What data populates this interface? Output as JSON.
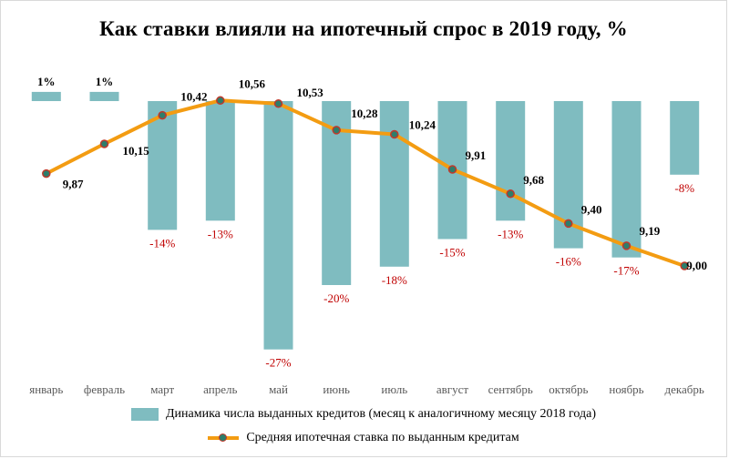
{
  "chart_data": {
    "type": "bar+line",
    "title": "Как ставки влияли на ипотечный спрос в 2019 году, %",
    "categories": [
      "январь",
      "февраль",
      "март",
      "апрель",
      "май",
      "июнь",
      "июль",
      "август",
      "сентябрь",
      "октябрь",
      "ноябрь",
      "декабрь"
    ],
    "series": [
      {
        "name": "Динамика числа выданных кредитов (месяц к аналогичному месяцу 2018 года)",
        "type": "bar",
        "values": [
          1,
          1,
          -14,
          -13,
          -27,
          -20,
          -18,
          -15,
          -13,
          -16,
          -17,
          -8
        ],
        "labels": [
          "1%",
          "1%",
          "-14%",
          "-13%",
          "-27%",
          "-20%",
          "-18%",
          "-15%",
          "-13%",
          "-16%",
          "-17%",
          "-8%"
        ],
        "color": "#7fbcc0",
        "label_color_negative": "#c00000"
      },
      {
        "name": "Средняя ипотечная ставка по выданным кредитам",
        "type": "line",
        "values": [
          9.87,
          10.15,
          10.42,
          10.56,
          10.53,
          10.28,
          10.24,
          9.91,
          9.68,
          9.4,
          9.19,
          9.0
        ],
        "labels": [
          "9,87",
          "10,15",
          "10,42",
          "10,56",
          "10,53",
          "10,28",
          "10,24",
          "9,91",
          "9,68",
          "9,40",
          "9,19",
          "9,00"
        ],
        "color": "#f39c12",
        "marker_fill": "#2e7d6b",
        "marker_edge": "#c0392b"
      }
    ],
    "grid": false,
    "legend_position": "bottom",
    "label_color": "#595959"
  }
}
